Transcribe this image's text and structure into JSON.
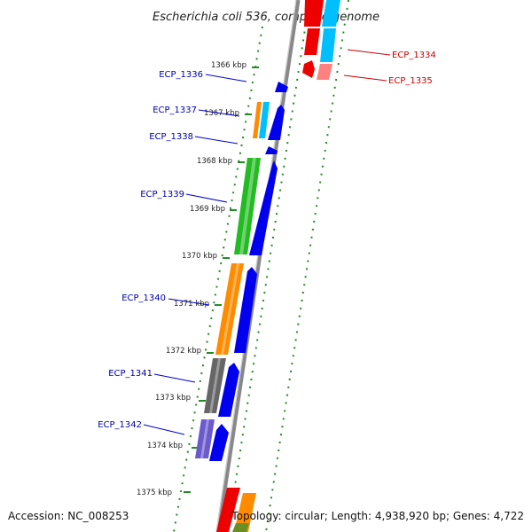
{
  "title": "Escherichia coli 536, complete genome",
  "footer": {
    "accession": "Accession: NC_008253",
    "summary": "Topology: circular; Length: 4,938,920 bp; Genes: 4,722"
  },
  "ticks": [
    "1366 kbp",
    "1367 kbp",
    "1368 kbp",
    "1369 kbp",
    "1370 kbp",
    "1371 kbp",
    "1372 kbp",
    "1373 kbp",
    "1374 kbp",
    "1375 kbp"
  ],
  "gene_labels_left": [
    {
      "text": "ECP_1336",
      "color": "#0000aa"
    },
    {
      "text": "ECP_1337",
      "color": "#0000aa"
    },
    {
      "text": "ECP_1338",
      "color": "#0000aa"
    },
    {
      "text": "ECP_1339",
      "color": "#0000aa"
    },
    {
      "text": "ECP_1340",
      "color": "#0000aa"
    },
    {
      "text": "ECP_1341",
      "color": "#0000aa"
    },
    {
      "text": "ECP_1342",
      "color": "#0000aa"
    }
  ],
  "gene_labels_right": [
    {
      "text": "ECP_1334",
      "color": "#cc0000"
    },
    {
      "text": "ECP_1335",
      "color": "#cc0000"
    }
  ],
  "colors": {
    "backbone": "#888888",
    "dots": "#228b22",
    "strand_blue": "#0000ee",
    "orange": "#ff8c00",
    "cyan": "#00bfff",
    "green": "#22bb22",
    "gray": "#666666",
    "purple": "#6a5acd",
    "red": "#ee0000",
    "pink": "#ff8080",
    "olive": "#6b8e23"
  }
}
